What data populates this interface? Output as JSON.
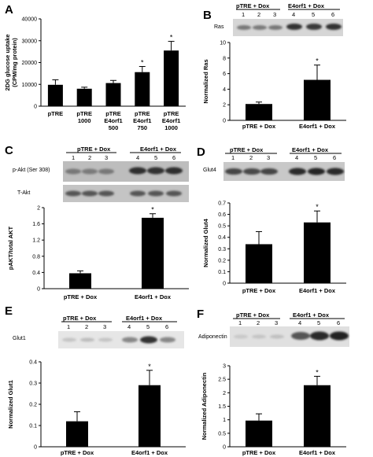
{
  "panels": {
    "A": {
      "letter": "A"
    },
    "B": {
      "letter": "B"
    },
    "C": {
      "letter": "C"
    },
    "D": {
      "letter": "D"
    },
    "E": {
      "letter": "E"
    },
    "F": {
      "letter": "F"
    }
  },
  "blots": {
    "ras": {
      "group1": "pTRE + Dox",
      "group2": "E4orf1 + Dox",
      "lanes": [
        "1",
        "2",
        "3",
        "4",
        "5",
        "6"
      ],
      "label": "Ras"
    },
    "akt": {
      "group1": "pTRE + Dox",
      "group2": "E4orf1 + Dox",
      "lanes": [
        "1",
        "2",
        "3",
        "4",
        "5",
        "6"
      ],
      "label_top": "p-Akt (Ser 308)",
      "label_bottom": "T-Akt"
    },
    "glut4": {
      "group1": "pTRE + Dox",
      "group2": "E4orf1 + Dox",
      "lanes": [
        "1",
        "2",
        "3",
        "4",
        "5",
        "6"
      ],
      "label": "Glut4"
    },
    "glut1": {
      "group1": "pTRE + Dox",
      "group2": "E4orf1 + Dox",
      "lanes": [
        "1",
        "2",
        "3",
        "4",
        "5",
        "6"
      ],
      "label": "Glut1"
    },
    "adiponectin": {
      "group1": "pTRE + Dox",
      "group2": "E4orf1 + Dox",
      "lanes": [
        "1",
        "2",
        "3",
        "4",
        "5",
        "6"
      ],
      "label": "Adiponectin"
    }
  },
  "chart_data": [
    {
      "id": "A",
      "type": "bar",
      "categories": [
        [
          "pTRE"
        ],
        [
          "pTRE",
          "1000"
        ],
        [
          "pTRE",
          "E4orf1",
          "500"
        ],
        [
          "pTRE",
          "E4orf1",
          "750"
        ],
        [
          "pTRE",
          "E4orf1",
          "1000"
        ]
      ],
      "values": [
        9800,
        8000,
        10600,
        15600,
        25500
      ],
      "errors": [
        2300,
        700,
        1200,
        2600,
        4200
      ],
      "significant": [
        false,
        false,
        false,
        true,
        true
      ],
      "ylabel": "2DG glucose uptake (CPM/mg protein)",
      "ylabel_lines": [
        "2DG glucose uptake",
        "(CPM/mg protein)"
      ],
      "yticks": [
        0,
        10000,
        20000,
        30000,
        40000
      ],
      "ytick_labels": [
        "0",
        "10000",
        "20000",
        "30000",
        "40000"
      ],
      "ylim": [
        0,
        40000
      ],
      "bar_color": "#000000"
    },
    {
      "id": "B",
      "type": "bar",
      "categories": [
        [
          "pTRE + Dox"
        ],
        [
          "E4orf1 + Dox"
        ]
      ],
      "values": [
        2.1,
        5.2
      ],
      "errors": [
        0.25,
        1.9
      ],
      "significant": [
        false,
        true
      ],
      "ylabel": "Normalized Ras",
      "ylabel_lines": [
        "Normalized Ras"
      ],
      "yticks": [
        0,
        2,
        4,
        6,
        8,
        10
      ],
      "ytick_labels": [
        "0",
        "2",
        "4",
        "6",
        "8",
        "10"
      ],
      "ylim": [
        0,
        10
      ],
      "bar_color": "#000000"
    },
    {
      "id": "C",
      "type": "bar",
      "categories": [
        [
          "pTRE + Dox"
        ],
        [
          "E4orf1 + Dox"
        ]
      ],
      "values": [
        0.38,
        1.75
      ],
      "errors": [
        0.06,
        0.1
      ],
      "significant": [
        false,
        true
      ],
      "ylabel": "pAKT/total AKT",
      "ylabel_lines": [
        "pAKT/total AKT"
      ],
      "yticks": [
        0,
        0.4,
        0.8,
        1.2,
        1.6,
        2
      ],
      "ytick_labels": [
        "0",
        "0.4",
        "0.8",
        "1.2",
        "1.6",
        "2"
      ],
      "ylim": [
        0,
        2
      ],
      "bar_color": "#000000"
    },
    {
      "id": "D",
      "type": "bar",
      "categories": [
        [
          "pTRE + Dox"
        ],
        [
          "E4orf1 + Dox"
        ]
      ],
      "values": [
        0.34,
        0.53
      ],
      "errors": [
        0.11,
        0.1
      ],
      "significant": [
        false,
        true
      ],
      "ylabel": "Normalized Glut4",
      "ylabel_lines": [
        "Normalized Glut4"
      ],
      "yticks": [
        0,
        0.1,
        0.2,
        0.3,
        0.4,
        0.5,
        0.6,
        0.7
      ],
      "ytick_labels": [
        "0",
        "0.1",
        "0.2",
        "0.3",
        "0.4",
        "0.5",
        "0.6",
        "0.7"
      ],
      "ylim": [
        0,
        0.7
      ],
      "bar_color": "#000000"
    },
    {
      "id": "E",
      "type": "bar",
      "categories": [
        [
          "pTRE + Dox"
        ],
        [
          "E4orf1 + Dox"
        ]
      ],
      "values": [
        0.12,
        0.29
      ],
      "errors": [
        0.045,
        0.07
      ],
      "significant": [
        false,
        true
      ],
      "ylabel": "Normalized Glut1",
      "ylabel_lines": [
        "Normalized Glut1"
      ],
      "yticks": [
        0,
        0.1,
        0.2,
        0.3,
        0.4
      ],
      "ytick_labels": [
        "0",
        "0.1",
        "0.2",
        "0.3",
        "0.4"
      ],
      "ylim": [
        0,
        0.4
      ],
      "bar_color": "#000000"
    },
    {
      "id": "F",
      "type": "bar",
      "categories": [
        [
          "pTRE + Dox"
        ],
        [
          "E4orf1 + Dox"
        ]
      ],
      "values": [
        0.97,
        2.28
      ],
      "errors": [
        0.25,
        0.33
      ],
      "significant": [
        false,
        true
      ],
      "ylabel": "Normalized Adiponectin",
      "ylabel_lines": [
        "Normalized Adiponectin"
      ],
      "yticks": [
        0,
        0.5,
        1,
        1.5,
        2,
        2.5,
        3
      ],
      "ytick_labels": [
        "0",
        "0.5",
        "1",
        "1.5",
        "2",
        "2.5",
        "3"
      ],
      "ylim": [
        0,
        3
      ],
      "bar_color": "#000000"
    }
  ]
}
